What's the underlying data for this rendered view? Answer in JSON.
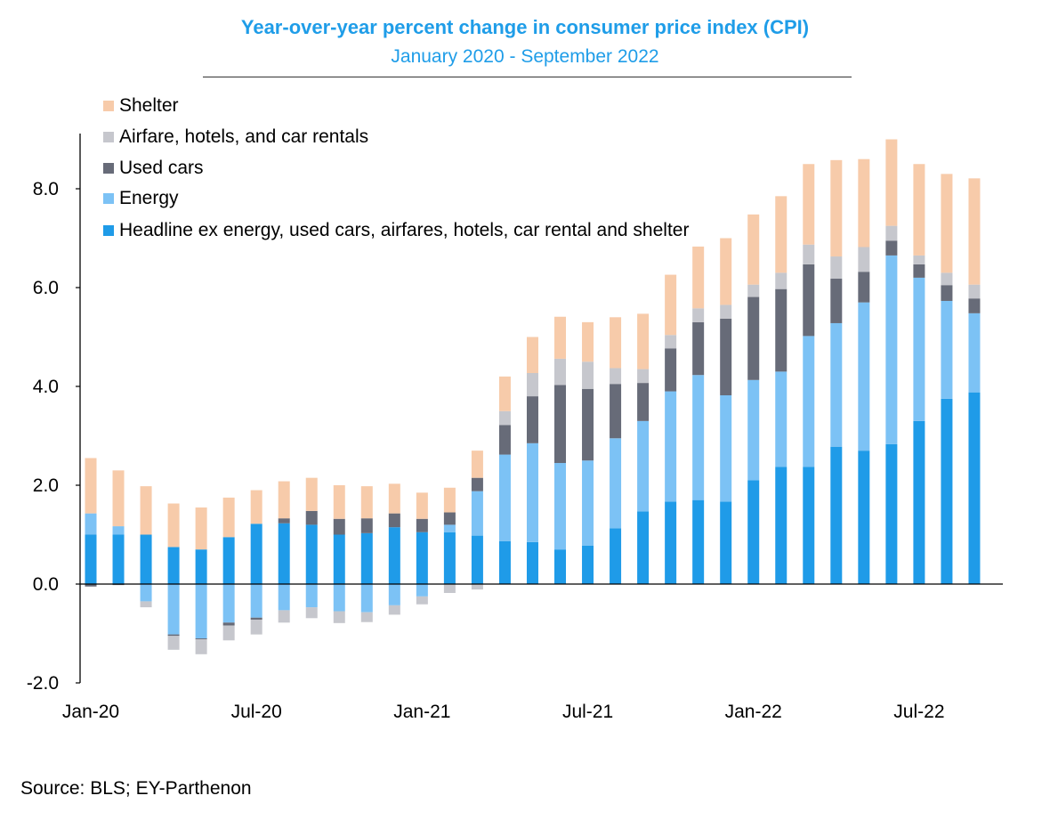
{
  "chart_data": {
    "type": "bar",
    "stacked": true,
    "title": "Year-over-year percent change in consumer price index (CPI)",
    "subtitle": "January 2020 - September 2022",
    "source": "Source: BLS; EY-Parthenon",
    "x": [
      "Jan-20",
      "Feb-20",
      "Mar-20",
      "Apr-20",
      "May-20",
      "Jun-20",
      "Jul-20",
      "Aug-20",
      "Sep-20",
      "Oct-20",
      "Nov-20",
      "Dec-20",
      "Jan-21",
      "Feb-21",
      "Mar-21",
      "Apr-21",
      "May-21",
      "Jun-21",
      "Jul-21",
      "Aug-21",
      "Sep-21",
      "Oct-21",
      "Nov-21",
      "Dec-21",
      "Jan-22",
      "Feb-22",
      "Mar-22",
      "Apr-22",
      "May-22",
      "Jun-22",
      "Jul-22",
      "Aug-22",
      "Sep-22"
    ],
    "xtick_labels": [
      "Jan-20",
      "Jul-20",
      "Jan-21",
      "Jul-21",
      "Jan-22",
      "Jul-22"
    ],
    "xtick_indices": [
      0,
      6,
      12,
      18,
      24,
      30
    ],
    "yticks": [
      "8.0",
      "6.0",
      "4.0",
      "2.0",
      "0.0",
      "-2.0"
    ],
    "ytick_values": [
      8,
      6,
      4,
      2,
      0,
      -2
    ],
    "ylim": [
      -2,
      9
    ],
    "legend_position": "top-left",
    "grid": false,
    "series": [
      {
        "name": "Headline ex energy, used cars, airfares, hotels, car rental and shelter",
        "color": "#1f9be8",
        "values": [
          1.0,
          1.0,
          1.0,
          0.75,
          0.7,
          0.95,
          1.22,
          1.23,
          1.2,
          1.0,
          1.03,
          1.15,
          1.05,
          1.05,
          0.98,
          0.87,
          0.85,
          0.7,
          0.78,
          1.13,
          1.47,
          1.67,
          1.7,
          1.67,
          2.1,
          2.37,
          2.37,
          2.78,
          2.7,
          2.83,
          3.3,
          3.75,
          3.88
        ]
      },
      {
        "name": "Energy",
        "color": "#7cc2f5",
        "values": [
          0.43,
          0.17,
          -0.35,
          -1.02,
          -1.1,
          -0.78,
          -0.68,
          -0.53,
          -0.47,
          -0.55,
          -0.57,
          -0.43,
          -0.25,
          0.15,
          0.9,
          1.75,
          2.0,
          1.75,
          1.72,
          1.82,
          1.83,
          2.23,
          2.53,
          2.15,
          2.03,
          1.93,
          2.65,
          2.5,
          3.0,
          3.82,
          2.9,
          1.98,
          1.6
        ]
      },
      {
        "name": "Used cars",
        "color": "#676b78",
        "values": [
          -0.05,
          -0.02,
          0.0,
          -0.03,
          -0.02,
          -0.06,
          -0.04,
          0.1,
          0.28,
          0.32,
          0.3,
          0.28,
          0.27,
          0.25,
          0.27,
          0.6,
          0.95,
          1.58,
          1.45,
          1.1,
          0.77,
          0.87,
          1.07,
          1.55,
          1.68,
          1.67,
          1.45,
          0.9,
          0.62,
          0.3,
          0.27,
          0.32,
          0.3
        ]
      },
      {
        "name": "Airfare, hotels, and car rentals",
        "color": "#c6c7cd",
        "values": [
          0.0,
          0.0,
          -0.12,
          -0.28,
          -0.3,
          -0.3,
          -0.3,
          -0.25,
          -0.22,
          -0.24,
          -0.2,
          -0.19,
          -0.16,
          -0.18,
          -0.11,
          0.28,
          0.47,
          0.53,
          0.55,
          0.32,
          0.28,
          0.27,
          0.28,
          0.28,
          0.25,
          0.33,
          0.4,
          0.45,
          0.5,
          0.3,
          0.18,
          0.25,
          0.28
        ]
      },
      {
        "name": "Shelter",
        "color": "#f7cbaa",
        "values": [
          1.12,
          1.13,
          0.98,
          0.88,
          0.85,
          0.8,
          0.68,
          0.75,
          0.67,
          0.68,
          0.65,
          0.6,
          0.53,
          0.5,
          0.55,
          0.7,
          0.73,
          0.85,
          0.8,
          1.03,
          1.12,
          1.22,
          1.25,
          1.35,
          1.42,
          1.55,
          1.63,
          1.95,
          1.78,
          1.75,
          1.85,
          2.0,
          2.15
        ]
      }
    ]
  }
}
